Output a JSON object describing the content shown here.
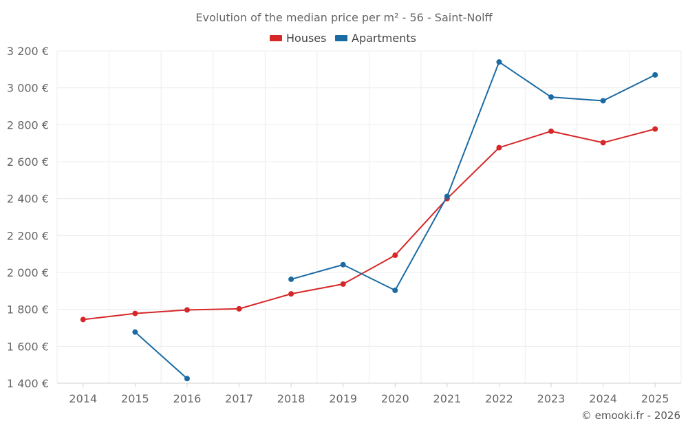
{
  "chart_data": {
    "type": "line",
    "title": "Evolution of the median price per m² - 56 - Saint-Nolff",
    "categories": [
      "2014",
      "2015",
      "2016",
      "2017",
      "2018",
      "2019",
      "2020",
      "2021",
      "2022",
      "2023",
      "2024",
      "2025"
    ],
    "y_ticks": [
      "1 400 €",
      "1 600 €",
      "1 800 €",
      "2 000 €",
      "2 200 €",
      "2 400 €",
      "2 600 €",
      "2 800 €",
      "3 000 €",
      "3 200 €"
    ],
    "y_tick_values": [
      1400,
      1600,
      1800,
      2000,
      2200,
      2400,
      2600,
      2800,
      3000,
      3200
    ],
    "ylim": [
      1400,
      3200
    ],
    "series": [
      {
        "name": "Houses",
        "color": "#d62728",
        "values": [
          1745,
          1778,
          1797,
          1803,
          1884,
          1937,
          2093,
          2400,
          2676,
          2765,
          2703,
          2777
        ]
      },
      {
        "name": "Apartments",
        "color": "#1a6aa3",
        "values": [
          null,
          1677,
          1425,
          null,
          1963,
          2042,
          1903,
          2412,
          3140,
          2950,
          2930,
          3070
        ]
      }
    ],
    "credit": "© emooki.fr - 2026"
  }
}
